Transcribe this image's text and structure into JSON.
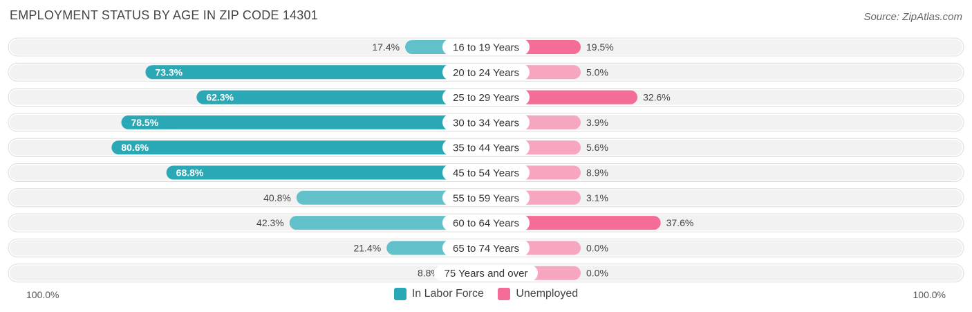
{
  "title": "EMPLOYMENT STATUS BY AGE IN ZIP CODE 14301",
  "source": "Source: ZipAtlas.com",
  "colors": {
    "labor_dark": "#2aa8b5",
    "labor_light": "#62c0ca",
    "unemp_dark": "#f46d96",
    "unemp_light": "#f7a6bf",
    "row_bg": "#f2f2f2"
  },
  "axis": {
    "left_label": "100.0%",
    "right_label": "100.0%"
  },
  "legend": {
    "labor": "In Labor Force",
    "unemployed": "Unemployed"
  },
  "chart_data": {
    "type": "bar",
    "orientation": "diverging-horizontal",
    "title": "EMPLOYMENT STATUS BY AGE IN ZIP CODE 14301",
    "categories": [
      "16 to 19 Years",
      "20 to 24 Years",
      "25 to 29 Years",
      "30 to 34 Years",
      "35 to 44 Years",
      "45 to 54 Years",
      "55 to 59 Years",
      "60 to 64 Years",
      "65 to 74 Years",
      "75 Years and over"
    ],
    "series": [
      {
        "name": "In Labor Force",
        "values": [
          17.4,
          73.3,
          62.3,
          78.5,
          80.6,
          68.8,
          40.8,
          42.3,
          21.4,
          8.8
        ],
        "labels": [
          "17.4%",
          "73.3%",
          "62.3%",
          "78.5%",
          "80.6%",
          "68.8%",
          "40.8%",
          "42.3%",
          "21.4%",
          "8.8%"
        ]
      },
      {
        "name": "Unemployed",
        "values": [
          19.5,
          5.0,
          32.6,
          3.9,
          5.6,
          8.9,
          3.1,
          37.6,
          0.0,
          0.0
        ],
        "labels": [
          "19.5%",
          "5.0%",
          "32.6%",
          "3.9%",
          "5.6%",
          "8.9%",
          "3.1%",
          "37.6%",
          "0.0%",
          "0.0%"
        ]
      }
    ],
    "xlim": [
      -100,
      100
    ]
  }
}
